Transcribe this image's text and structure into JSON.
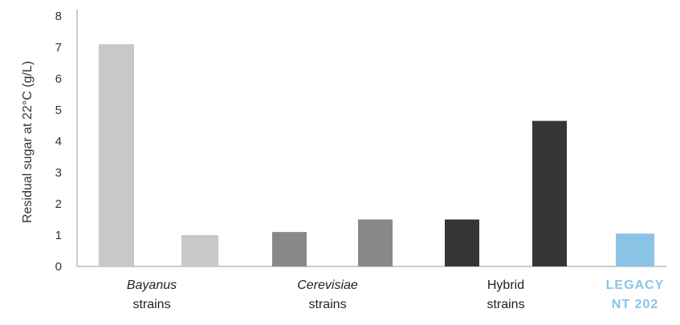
{
  "chart_data": {
    "type": "bar",
    "ylabel": "Residual sugar at 22°C (g/L)",
    "ylim": [
      0,
      8
    ],
    "yticks": [
      0,
      1,
      2,
      3,
      4,
      5,
      6,
      7,
      8
    ],
    "grid": false,
    "bars": [
      {
        "group": 0,
        "value": 7.1,
        "color": "#c8c8c8"
      },
      {
        "group": 0,
        "value": 1.0,
        "color": "#c8c8c8"
      },
      {
        "group": 1,
        "value": 1.1,
        "color": "#888888"
      },
      {
        "group": 1,
        "value": 1.5,
        "color": "#888888"
      },
      {
        "group": 2,
        "value": 1.5,
        "color": "#353737"
      },
      {
        "group": 2,
        "value": 4.65,
        "color": "#353737"
      },
      {
        "group": 3,
        "value": 1.05,
        "color": "#8cc4e8"
      }
    ],
    "groups": [
      {
        "line1": "Bayanus",
        "line2": "strains",
        "italic_first": true
      },
      {
        "line1": "Cerevisiae",
        "line2": "strains",
        "italic_first": true
      },
      {
        "line1": "Hybrid",
        "line2": "strains",
        "italic_first": false
      },
      {
        "line1": "LEGACY",
        "line2": "NT 202",
        "highlight": true,
        "color": "#8cc4e8"
      }
    ]
  }
}
